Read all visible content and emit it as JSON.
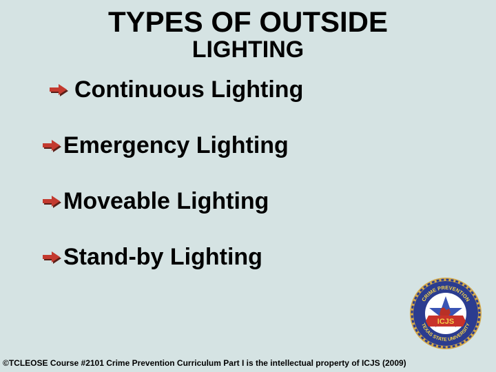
{
  "background_color": "#d5e3e3",
  "title": {
    "line1": "TYPES OF OUTSIDE",
    "line2": "LIGHTING",
    "line1_fontsize": 42,
    "line2_fontsize": 34
  },
  "bullets": [
    {
      "text": "Continuous Lighting",
      "indent": true
    },
    {
      "text": "Emergency Lighting",
      "indent": false
    },
    {
      "text": "Moveable Lighting",
      "indent": false
    },
    {
      "text": "Stand-by Lighting",
      "indent": false
    }
  ],
  "bullet_fontsize": 34,
  "arrow": {
    "fill": "#c33a2f",
    "shadow": "#5a1f18"
  },
  "footer": {
    "text": "©TCLEOSE Course #2101 Crime Prevention Curriculum Part I is the intellectual property of ICJS (2009)",
    "fontsize": 12
  },
  "badge": {
    "outer_ring": "#2b3c8f",
    "rope": "#d4a94a",
    "inner": "#ffffff",
    "star_fill": "#3a54b4",
    "banner_fill": "#c8322a",
    "banner_text": "CRIME PREVENTION",
    "bottom_text": "TEXAS STATE UNIVERSITY",
    "center_text": "ICJS",
    "text_color": "#f4d24a"
  }
}
